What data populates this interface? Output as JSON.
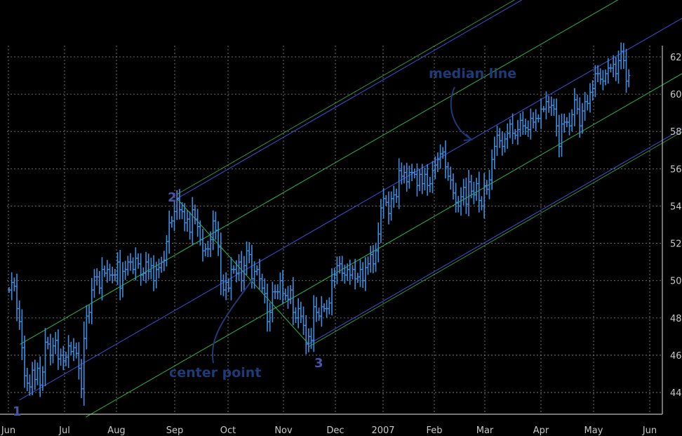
{
  "chart_data": {
    "type": "ohlc",
    "title": "",
    "xlabel": "",
    "ylabel": "",
    "ylim": [
      43,
      63
    ],
    "y_ticks": [
      44,
      46,
      48,
      50,
      52,
      54,
      56,
      58,
      60,
      62
    ],
    "y_axis_side": "right",
    "x_tick_labels": [
      "Jun",
      "Jul",
      "Aug",
      "Sep",
      "Oct",
      "Nov",
      "Dec",
      "2007",
      "Feb",
      "Mar",
      "Apr",
      "May",
      "Jun"
    ],
    "grid": true,
    "series_color": "#3b8fe0",
    "pitchfork": {
      "median_color": "#3f4fd8",
      "inner_color": "#29b84a",
      "pivots": [
        {
          "label": "1",
          "index": 4,
          "price": 43.6
        },
        {
          "label": "2",
          "index": 65,
          "price": 54.4
        },
        {
          "label": "3",
          "index": 116,
          "price": 46.6
        }
      ]
    },
    "annotations": [
      "median line",
      "center point"
    ],
    "ohlc_closes": [
      49.5,
      49.9,
      49.7,
      48.5,
      47.8,
      46.4,
      44.9,
      44.5,
      44.3,
      45.2,
      44.7,
      45.3,
      44.4,
      45.1,
      46.7,
      46.6,
      46.0,
      46.5,
      46.8,
      45.8,
      46.0,
      45.7,
      45.9,
      46.5,
      46.2,
      46.4,
      46.1,
      45.3,
      44.2,
      46.9,
      48.1,
      48.3,
      49.5,
      50.2,
      50.2,
      49.6,
      50.6,
      50.4,
      50.6,
      50.3,
      50.3,
      50.3,
      51.0,
      49.6,
      50.5,
      50.6,
      51.0,
      51.0,
      50.6,
      51.2,
      50.9,
      50.3,
      50.4,
      51.0,
      50.5,
      50.8,
      50.0,
      50.6,
      50.7,
      51.0,
      51.1,
      52.1,
      53.1,
      53.2,
      53.7,
      54.4,
      53.8,
      53.7,
      53.1,
      53.3,
      52.6,
      53.8,
      53.3,
      52.9,
      52.2,
      51.6,
      51.7,
      51.7,
      52.2,
      53.2,
      52.7,
      51.8,
      50.0,
      49.5,
      49.9,
      49.6,
      50.6,
      50.6,
      50.4,
      51.0,
      50.0,
      50.8,
      51.6,
      51.4,
      50.1,
      50.5,
      50.6,
      50.1,
      49.6,
      49.3,
      47.8,
      48.3,
      49.4,
      49.4,
      49.4,
      50.0,
      49.3,
      49.2,
      49.0,
      49.5,
      48.3,
      48.0,
      48.5,
      48.1,
      47.6,
      46.6,
      47.0,
      46.8,
      48.6,
      48.3,
      48.1,
      48.6,
      48.5,
      48.5,
      48.8,
      50.0,
      50.3,
      50.8,
      50.9,
      50.4,
      50.3,
      50.6,
      50.3,
      50.6,
      50.1,
      50.2,
      50.6,
      50.0,
      50.7,
      50.9,
      51.4,
      50.9,
      51.6,
      52.5,
      53.9,
      54.4,
      54.2,
      53.6,
      54.4,
      54.6,
      54.5,
      55.9,
      55.6,
      55.8,
      55.3,
      55.8,
      55.8,
      55.7,
      55.1,
      55.7,
      55.2,
      55.7,
      55.1,
      55.2,
      55.9,
      56.2,
      56.5,
      56.8,
      56.9,
      56.1,
      55.6,
      55.4,
      54.7,
      54.2,
      54.0,
      54.5,
      55.0,
      54.1,
      55.3,
      54.8,
      54.6,
      55.2,
      54.3,
      54.0,
      55.1,
      54.9,
      55.4,
      56.5,
      57.2,
      57.8,
      57.5,
      57.2,
      57.6,
      57.9,
      58.4,
      57.9,
      57.8,
      58.1,
      58.6,
      58.3,
      58.2,
      58.1,
      58.7,
      58.5,
      58.7,
      58.7,
      59.2,
      59.2,
      59.6,
      59.3,
      59.4,
      59.2,
      58.3,
      57.2,
      58.4,
      58.5,
      58.5,
      58.3,
      58.9,
      59.7,
      59.2,
      58.3,
      59.1,
      59.6,
      59.5,
      60.1,
      60.3,
      61.1,
      61.1,
      60.8,
      60.7,
      61.1,
      61.4,
      61.4,
      61.6,
      61.1,
      61.8,
      62.3,
      61.8,
      60.7,
      61.0
    ]
  }
}
